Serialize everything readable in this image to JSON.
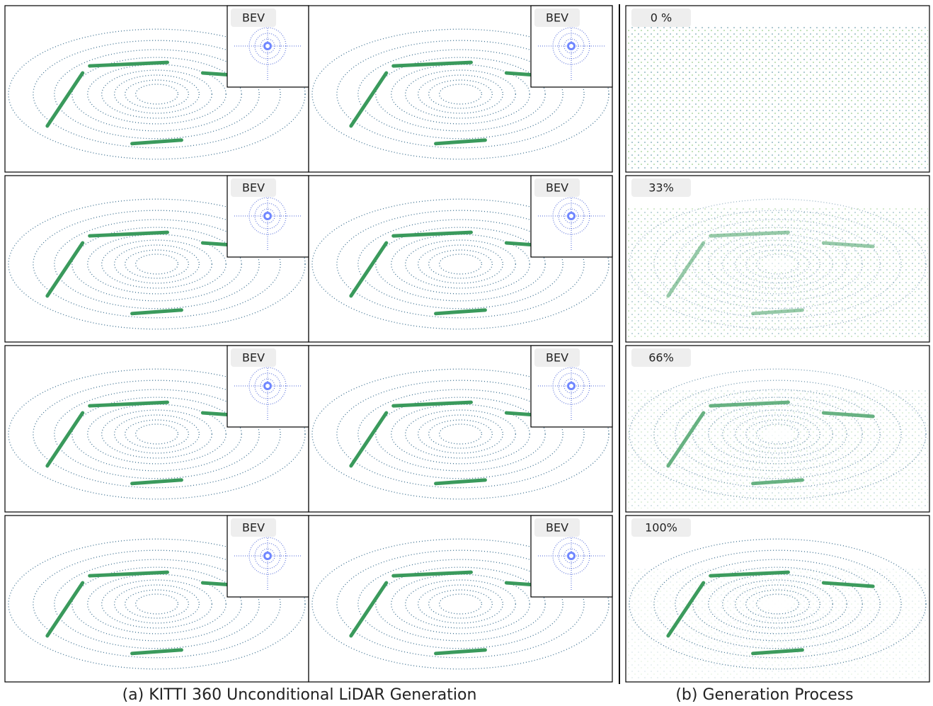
{
  "left_panel": {
    "caption": "(a) KITTI 360 Unconditional LiDAR Generation",
    "samples": [
      {
        "inset_label": "BEV"
      },
      {
        "inset_label": "BEV"
      },
      {
        "inset_label": "BEV"
      },
      {
        "inset_label": "BEV"
      },
      {
        "inset_label": "BEV"
      },
      {
        "inset_label": "BEV"
      },
      {
        "inset_label": "BEV"
      },
      {
        "inset_label": "BEV"
      }
    ]
  },
  "right_panel": {
    "caption": "(b) Generation Process",
    "steps": [
      {
        "label": "0 %"
      },
      {
        "label": "33%"
      },
      {
        "label": "66%"
      },
      {
        "label": "100%"
      }
    ]
  }
}
